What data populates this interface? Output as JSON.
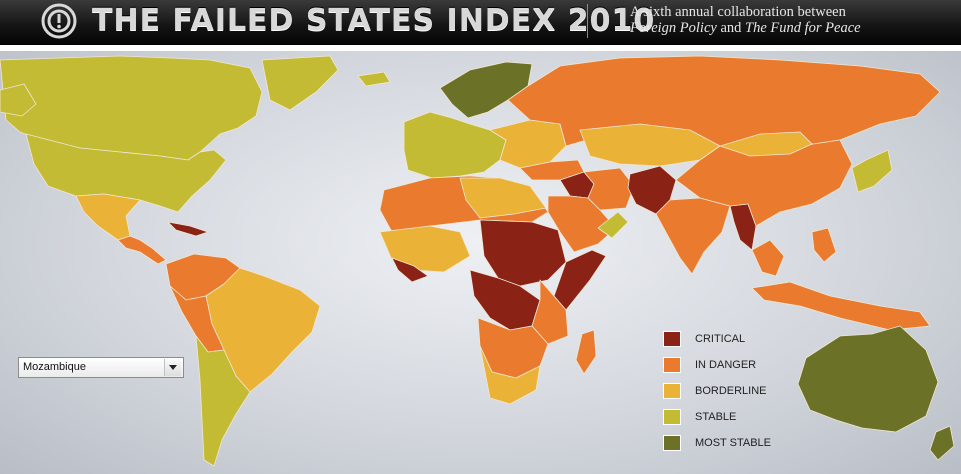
{
  "header": {
    "title": "THE FAILED STATES INDEX 2010",
    "tagline_line1": "A sixth annual collaboration between",
    "tagline_fp": "Foreign Policy",
    "tagline_and": " and ",
    "tagline_ffp": "The Fund for Peace",
    "logo_icon": "target-logo-icon"
  },
  "country_select": {
    "selected": "Mozambique",
    "arrow_icon": "chevron-down-icon"
  },
  "legend": {
    "items": [
      {
        "label": "CRITICAL",
        "color": "#8b2216"
      },
      {
        "label": "IN DANGER",
        "color": "#e97a2e"
      },
      {
        "label": "BORDERLINE",
        "color": "#ebb238"
      },
      {
        "label": "STABLE",
        "color": "#c3bb34"
      },
      {
        "label": "MOST STABLE",
        "color": "#6c7128"
      }
    ]
  },
  "colors": {
    "critical": "#8b2216",
    "in_danger": "#e97a2e",
    "borderline": "#ebb238",
    "stable": "#c3bb34",
    "most_stable": "#6c7128",
    "ocean": "#dfe2e7"
  }
}
